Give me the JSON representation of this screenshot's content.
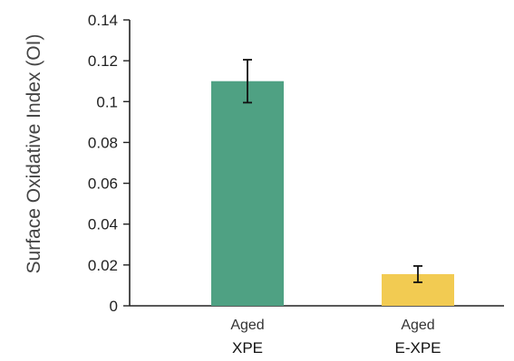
{
  "chart_data": {
    "type": "bar",
    "title": "",
    "ylabel": "Surface Oxidative Index (OI)",
    "xlabel": "",
    "ylim": [
      0,
      0.14
    ],
    "yticks": [
      0,
      0.02,
      0.04,
      0.06,
      0.08,
      0.1,
      0.12,
      0.14
    ],
    "ytick_labels": [
      "0",
      "0.02",
      "0.04",
      "0.06",
      "0.08",
      "0.1",
      "0.12",
      "0.14"
    ],
    "categories": [
      "XPE",
      "E-XPE"
    ],
    "sublabels": [
      "Aged",
      "Aged"
    ],
    "values": [
      0.11,
      0.0155
    ],
    "errors": [
      0.0105,
      0.004
    ],
    "colors": [
      "#4fa183",
      "#f2cb52"
    ],
    "grid": false,
    "legend": "none"
  }
}
